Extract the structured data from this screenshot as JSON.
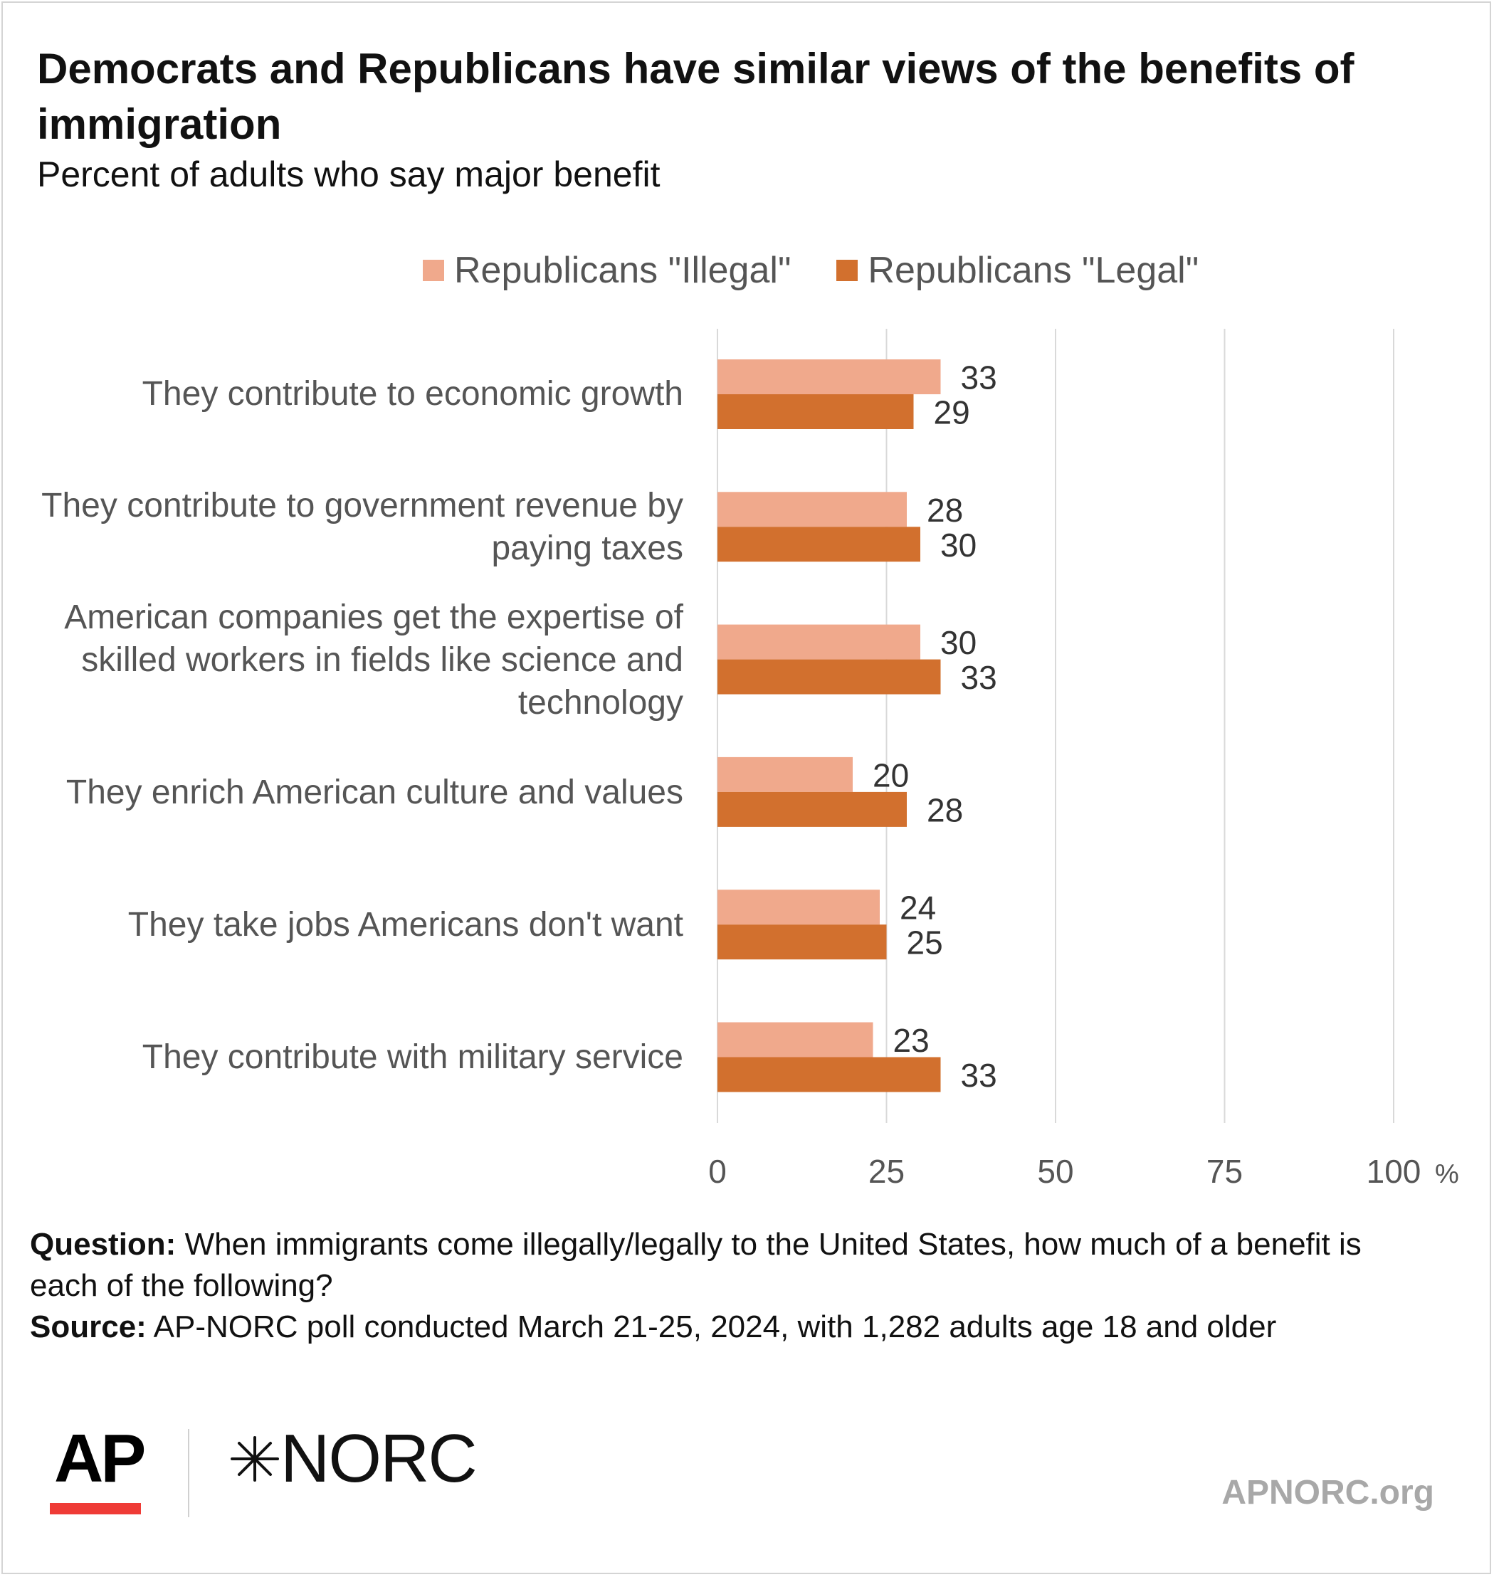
{
  "chart_data": {
    "type": "bar",
    "orientation": "horizontal",
    "title": "Democrats and Republicans have similar views of the benefits of immigration",
    "subtitle": "Percent of adults who say major benefit",
    "categories": [
      "They contribute to economic growth",
      "They contribute to government revenue by paying taxes",
      "American companies get the expertise of skilled workers in fields like science and technology",
      "They enrich American culture and values",
      "They take jobs Americans don't want",
      "They contribute with military service"
    ],
    "series": [
      {
        "name": "Republicans \"Illegal\"",
        "color": "#f0a98c",
        "values": [
          33,
          28,
          30,
          20,
          24,
          23
        ]
      },
      {
        "name": "Republicans \"Legal\"",
        "color": "#d2702e",
        "values": [
          29,
          30,
          33,
          28,
          25,
          33
        ]
      }
    ],
    "xlim": [
      0,
      100
    ],
    "xticks": [
      "0",
      "25",
      "50",
      "75",
      "100"
    ],
    "x_unit": "%",
    "grid": true,
    "legend_position": "top",
    "data_labels": true
  },
  "footer": {
    "question_label": "Question:",
    "question_text": "When immigrants come illegally/legally to the United States, how much of a benefit is each of the following?",
    "source_label": "Source:",
    "source_text": "AP-NORC poll conducted March 21-25, 2024, with 1,282 adults age 18 and older"
  },
  "branding": {
    "ap_logo": "AP",
    "ap_accent_color": "#ef3b36",
    "norc_logo": "NORC",
    "norc_icon": "star-burst-icon",
    "site": "APNORC.org"
  }
}
